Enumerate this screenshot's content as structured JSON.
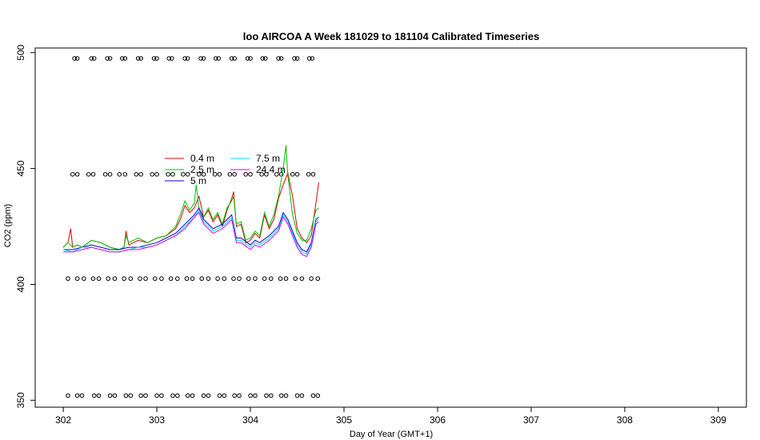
{
  "chart_data": {
    "type": "line",
    "title": "loo AIRCOA A  Week 181029 to 181104  Calibrated Timeseries",
    "xlabel": "Day of Year (GMT+1)",
    "ylabel": "CO2 (ppm)",
    "xlim": [
      301.7,
      309.3
    ],
    "ylim": [
      347,
      502
    ],
    "xticks": [
      302,
      303,
      304,
      305,
      306,
      307,
      308,
      309
    ],
    "yticks": [
      350,
      400,
      450,
      500
    ],
    "grid": false,
    "legend_position": "upper-left",
    "colors": {
      "0.4 m": "#e00000",
      "2.5 m": "#00c000",
      "5 m": "#0000e0",
      "7.5 m": "#00e0e0",
      "24.4 m": "#e000e0",
      "reference": "#000000"
    },
    "series": [
      {
        "name": "0.4 m",
        "x": [
          302.0,
          302.05,
          302.08,
          302.1,
          302.15,
          302.2,
          302.3,
          302.4,
          302.5,
          302.6,
          302.65,
          302.67,
          302.7,
          302.8,
          302.9,
          303.0,
          303.1,
          303.2,
          303.25,
          303.3,
          303.35,
          303.4,
          303.45,
          303.5,
          303.55,
          303.6,
          303.65,
          303.7,
          303.75,
          303.8,
          303.82,
          303.85,
          303.9,
          303.95,
          304.0,
          304.05,
          304.1,
          304.15,
          304.2,
          304.25,
          304.3,
          304.35,
          304.4,
          304.45,
          304.5,
          304.55,
          304.6,
          304.65,
          304.7,
          304.73
        ],
        "y": [
          416,
          418,
          424,
          416,
          417,
          416,
          419,
          418,
          416,
          415,
          416,
          423,
          417,
          419,
          418,
          420,
          421,
          424,
          428,
          434,
          431,
          433,
          438,
          429,
          432,
          427,
          430,
          425,
          432,
          437,
          440,
          425,
          426,
          418,
          419,
          422,
          420,
          430,
          424,
          428,
          437,
          443,
          448,
          438,
          424,
          420,
          418,
          421,
          435,
          444
        ]
      },
      {
        "name": "2.5 m",
        "x": [
          302.0,
          302.05,
          302.1,
          302.15,
          302.2,
          302.3,
          302.4,
          302.5,
          302.6,
          302.65,
          302.67,
          302.7,
          302.8,
          302.9,
          303.0,
          303.1,
          303.2,
          303.25,
          303.3,
          303.35,
          303.4,
          303.42,
          303.45,
          303.5,
          303.55,
          303.6,
          303.65,
          303.7,
          303.75,
          303.8,
          303.82,
          303.85,
          303.9,
          303.95,
          304.0,
          304.05,
          304.1,
          304.15,
          304.2,
          304.25,
          304.3,
          304.35,
          304.38,
          304.4,
          304.45,
          304.5,
          304.55,
          304.6,
          304.65,
          304.7,
          304.73
        ],
        "y": [
          416,
          418,
          416,
          417,
          416,
          419,
          418,
          416,
          415,
          416,
          421,
          418,
          420,
          418,
          420,
          421,
          425,
          430,
          436,
          432,
          435,
          443,
          433,
          429,
          433,
          428,
          431,
          426,
          433,
          436,
          438,
          426,
          427,
          419,
          420,
          423,
          421,
          431,
          425,
          430,
          438,
          450,
          460,
          447,
          430,
          422,
          419,
          419,
          424,
          432,
          433
        ]
      },
      {
        "name": "5 m",
        "x": [
          302.0,
          302.1,
          302.2,
          302.3,
          302.4,
          302.5,
          302.6,
          302.7,
          302.8,
          302.9,
          303.0,
          303.1,
          303.2,
          303.3,
          303.4,
          303.45,
          303.5,
          303.6,
          303.7,
          303.8,
          303.85,
          303.9,
          304.0,
          304.05,
          304.1,
          304.2,
          304.3,
          304.35,
          304.4,
          304.5,
          304.55,
          304.6,
          304.65,
          304.7,
          304.73
        ],
        "y": [
          415,
          415,
          416,
          417,
          416,
          415,
          415,
          416,
          416,
          417,
          418,
          420,
          422,
          426,
          430,
          433,
          428,
          424,
          426,
          430,
          420,
          420,
          417,
          419,
          418,
          421,
          425,
          431,
          428,
          418,
          415,
          414,
          418,
          428,
          429
        ]
      },
      {
        "name": "7.5 m",
        "x": [
          302.0,
          302.1,
          302.2,
          302.3,
          302.4,
          302.5,
          302.6,
          302.7,
          302.8,
          302.9,
          303.0,
          303.1,
          303.2,
          303.3,
          303.4,
          303.45,
          303.5,
          303.6,
          303.7,
          303.8,
          303.85,
          303.9,
          304.0,
          304.05,
          304.1,
          304.2,
          304.3,
          304.35,
          304.4,
          304.5,
          304.55,
          304.6,
          304.65,
          304.7,
          304.73
        ],
        "y": [
          415,
          414,
          416,
          416,
          415,
          414,
          414,
          415,
          416,
          416,
          417,
          419,
          421,
          425,
          429,
          432,
          427,
          423,
          425,
          429,
          419,
          419,
          416,
          418,
          417,
          420,
          424,
          430,
          427,
          417,
          414,
          413,
          417,
          427,
          428
        ]
      },
      {
        "name": "24.4 m",
        "x": [
          302.0,
          302.1,
          302.2,
          302.3,
          302.4,
          302.5,
          302.6,
          302.7,
          302.8,
          302.9,
          303.0,
          303.1,
          303.2,
          303.3,
          303.4,
          303.45,
          303.5,
          303.6,
          303.7,
          303.8,
          303.85,
          303.9,
          304.0,
          304.05,
          304.1,
          304.2,
          304.3,
          304.35,
          304.4,
          304.5,
          304.55,
          304.6,
          304.65,
          304.7,
          304.73
        ],
        "y": [
          414,
          414,
          415,
          416,
          415,
          414,
          414,
          415,
          415,
          416,
          417,
          419,
          421,
          424,
          429,
          431,
          426,
          422,
          424,
          428,
          418,
          418,
          415,
          417,
          416,
          419,
          423,
          429,
          426,
          416,
          413,
          412,
          416,
          426,
          427
        ]
      }
    ],
    "reference_points": [
      {
        "y": 497.5,
        "x": [
          302.12,
          302.15,
          302.3,
          302.33,
          302.47,
          302.5,
          302.63,
          302.66,
          302.8,
          302.83,
          302.97,
          303.0,
          303.13,
          303.16,
          303.3,
          303.33,
          303.47,
          303.5,
          303.63,
          303.66,
          303.8,
          303.83,
          303.97,
          304.0,
          304.13,
          304.16,
          304.3,
          304.33,
          304.47,
          304.5,
          304.63,
          304.66
        ]
      },
      {
        "y": 447.5,
        "x": [
          302.1,
          302.15,
          302.27,
          302.32,
          302.45,
          302.5,
          302.6,
          302.66,
          302.78,
          302.83,
          302.95,
          303.0,
          303.12,
          303.17,
          303.28,
          303.33,
          303.45,
          303.5,
          303.62,
          303.67,
          303.78,
          303.83,
          303.95,
          304.0,
          304.12,
          304.17,
          304.28,
          304.33,
          304.45,
          304.5,
          304.62,
          304.67
        ]
      },
      {
        "y": 402.5,
        "x": [
          302.05,
          302.15,
          302.22,
          302.32,
          302.38,
          302.48,
          302.55,
          302.65,
          302.72,
          302.82,
          302.88,
          302.98,
          303.05,
          303.15,
          303.22,
          303.32,
          303.38,
          303.48,
          303.55,
          303.65,
          303.72,
          303.82,
          303.88,
          303.98,
          304.05,
          304.15,
          304.22,
          304.32,
          304.38,
          304.48,
          304.55,
          304.65,
          304.72
        ]
      },
      {
        "y": 352.0,
        "x": [
          302.05,
          302.15,
          302.2,
          302.33,
          302.38,
          302.5,
          302.55,
          302.67,
          302.72,
          302.83,
          302.88,
          303.0,
          303.05,
          303.17,
          303.22,
          303.33,
          303.38,
          303.5,
          303.55,
          303.67,
          303.72,
          303.83,
          303.88,
          304.0,
          304.05,
          304.17,
          304.22,
          304.33,
          304.38,
          304.5,
          304.55,
          304.67,
          304.72
        ]
      }
    ]
  }
}
